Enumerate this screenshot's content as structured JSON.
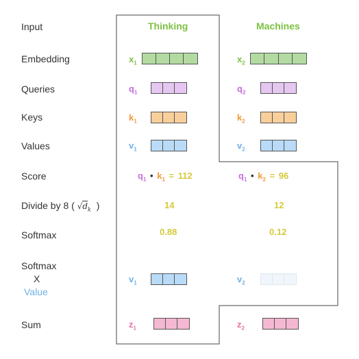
{
  "labels": {
    "input": "Input",
    "embedding": "Embedding",
    "queries": "Queries",
    "keys": "Keys",
    "values": "Values",
    "score": "Score",
    "divide": "Divide by 8 (",
    "divide_close": ")",
    "softmax": "Softmax",
    "softmax_x_value_1": "Softmax",
    "softmax_x_value_2": "X",
    "softmax_x_value_3": "Value",
    "sum": "Sum"
  },
  "sqrt_dk": {
    "root": "√",
    "d": "d",
    "k": "k"
  },
  "words": [
    "Thinking",
    "Machines"
  ],
  "symbols": {
    "x1": {
      "base": "x",
      "sub": "1"
    },
    "x2": {
      "base": "x",
      "sub": "2"
    },
    "q1": {
      "base": "q",
      "sub": "1"
    },
    "q2": {
      "base": "q",
      "sub": "2"
    },
    "k1": {
      "base": "k",
      "sub": "1"
    },
    "k2": {
      "base": "k",
      "sub": "2"
    },
    "v1": {
      "base": "v",
      "sub": "1"
    },
    "v2": {
      "base": "v",
      "sub": "2"
    },
    "z1": {
      "base": "z",
      "sub": "1"
    },
    "z2": {
      "base": "z",
      "sub": "2"
    }
  },
  "score": {
    "col1": {
      "q": "q",
      "qsub": "1",
      "dot": "•",
      "k": "k",
      "ksub": "1",
      "eq": "=",
      "value": "112"
    },
    "col2": {
      "q": "q",
      "qsub": "1",
      "dot": "•",
      "k": "k",
      "ksub": "2",
      "eq": "=",
      "value": "96"
    }
  },
  "divided": [
    "14",
    "12"
  ],
  "softmax": [
    "0.88",
    "0.12"
  ],
  "colors": {
    "green": "#7dc142",
    "purple": "#c46fdb",
    "orange": "#ef9a3c",
    "blue": "#6fb1e8",
    "pink": "#e872a6",
    "yellow": "#d6c93c",
    "embedding_fill": "#b3dba1",
    "query_fill": "#e5c7f2",
    "key_fill": "#f8cf9b",
    "value_fill": "#b9dbf8",
    "value_faded_fill": "#f0f6fb",
    "sum_fill": "#f5b8d2"
  }
}
